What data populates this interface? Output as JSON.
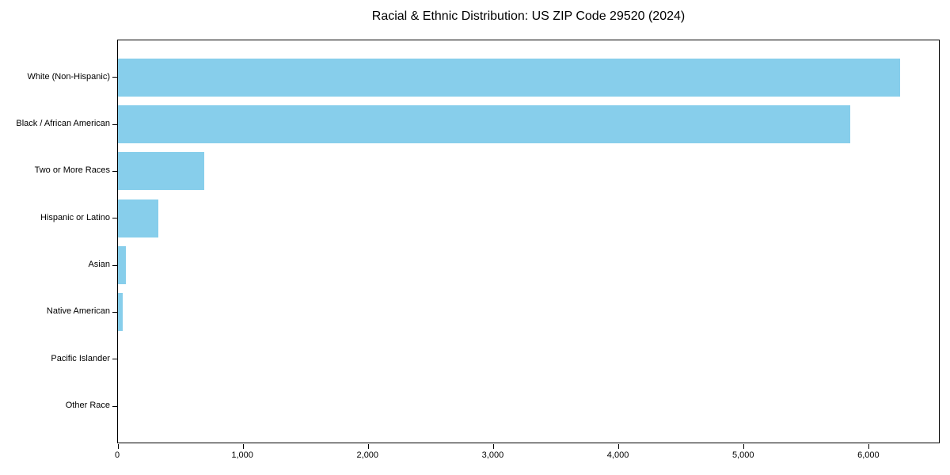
{
  "chart_data": {
    "type": "bar",
    "orientation": "horizontal",
    "title": "Racial & Ethnic Distribution: US ZIP Code 29520 (2024)",
    "xlabel": "",
    "ylabel": "",
    "categories": [
      "White (Non-Hispanic)",
      "Black / African American",
      "Two or More Races",
      "Hispanic or Latino",
      "Asian",
      "Native American",
      "Pacific Islander",
      "Other Race"
    ],
    "values": [
      6250,
      5850,
      690,
      320,
      65,
      40,
      0,
      0
    ],
    "xlim": [
      0,
      6570
    ],
    "x_ticks": [
      0,
      1000,
      2000,
      3000,
      4000,
      5000,
      6000
    ],
    "x_tick_labels": [
      "0",
      "1,000",
      "2,000",
      "3,000",
      "4,000",
      "5,000",
      "6,000"
    ],
    "bar_color": "#87CEEB",
    "background_color": "#FFFFFF",
    "spine_color": "#000000",
    "grid": false,
    "legend_position": "none"
  }
}
